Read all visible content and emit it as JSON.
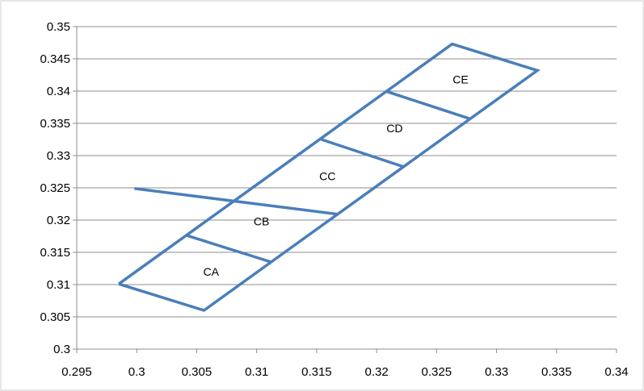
{
  "chart_data": {
    "type": "scatter",
    "title": "",
    "xlabel": "",
    "ylabel": "",
    "xlim": [
      0.295,
      0.34
    ],
    "ylim": [
      0.3,
      0.35
    ],
    "x_ticks": [
      "0.295",
      "0.3",
      "0.305",
      "0.31",
      "0.315",
      "0.32",
      "0.325",
      "0.33",
      "0.335",
      "0.34"
    ],
    "y_ticks": [
      "0.3",
      "0.305",
      "0.31",
      "0.315",
      "0.32",
      "0.325",
      "0.33",
      "0.335",
      "0.34",
      "0.345",
      "0.35"
    ],
    "grid": "horizontal",
    "legend": "none",
    "line_color": "#4a7ebb",
    "outline": [
      [
        0.2985,
        0.3101
      ],
      [
        0.3056,
        0.306
      ],
      [
        0.3334,
        0.3432
      ],
      [
        0.3263,
        0.3473
      ],
      [
        0.2985,
        0.3101
      ]
    ],
    "dividers": [
      [
        [
          0.3042,
          0.3176
        ],
        [
          0.3112,
          0.3135
        ]
      ],
      [
        [
          0.2998,
          0.3249
        ],
        [
          0.3168,
          0.3209
        ]
      ],
      [
        [
          0.3154,
          0.3325
        ],
        [
          0.3222,
          0.3283
        ]
      ],
      [
        [
          0.3209,
          0.3399
        ],
        [
          0.3278,
          0.3357
        ]
      ]
    ],
    "regions": [
      {
        "label": "CA",
        "x": 0.3062,
        "y": 0.3114
      },
      {
        "label": "CB",
        "x": 0.3104,
        "y": 0.3192
      },
      {
        "label": "CC",
        "x": 0.3159,
        "y": 0.3262
      },
      {
        "label": "CD",
        "x": 0.3215,
        "y": 0.3336
      },
      {
        "label": "CE",
        "x": 0.327,
        "y": 0.3412
      }
    ]
  }
}
